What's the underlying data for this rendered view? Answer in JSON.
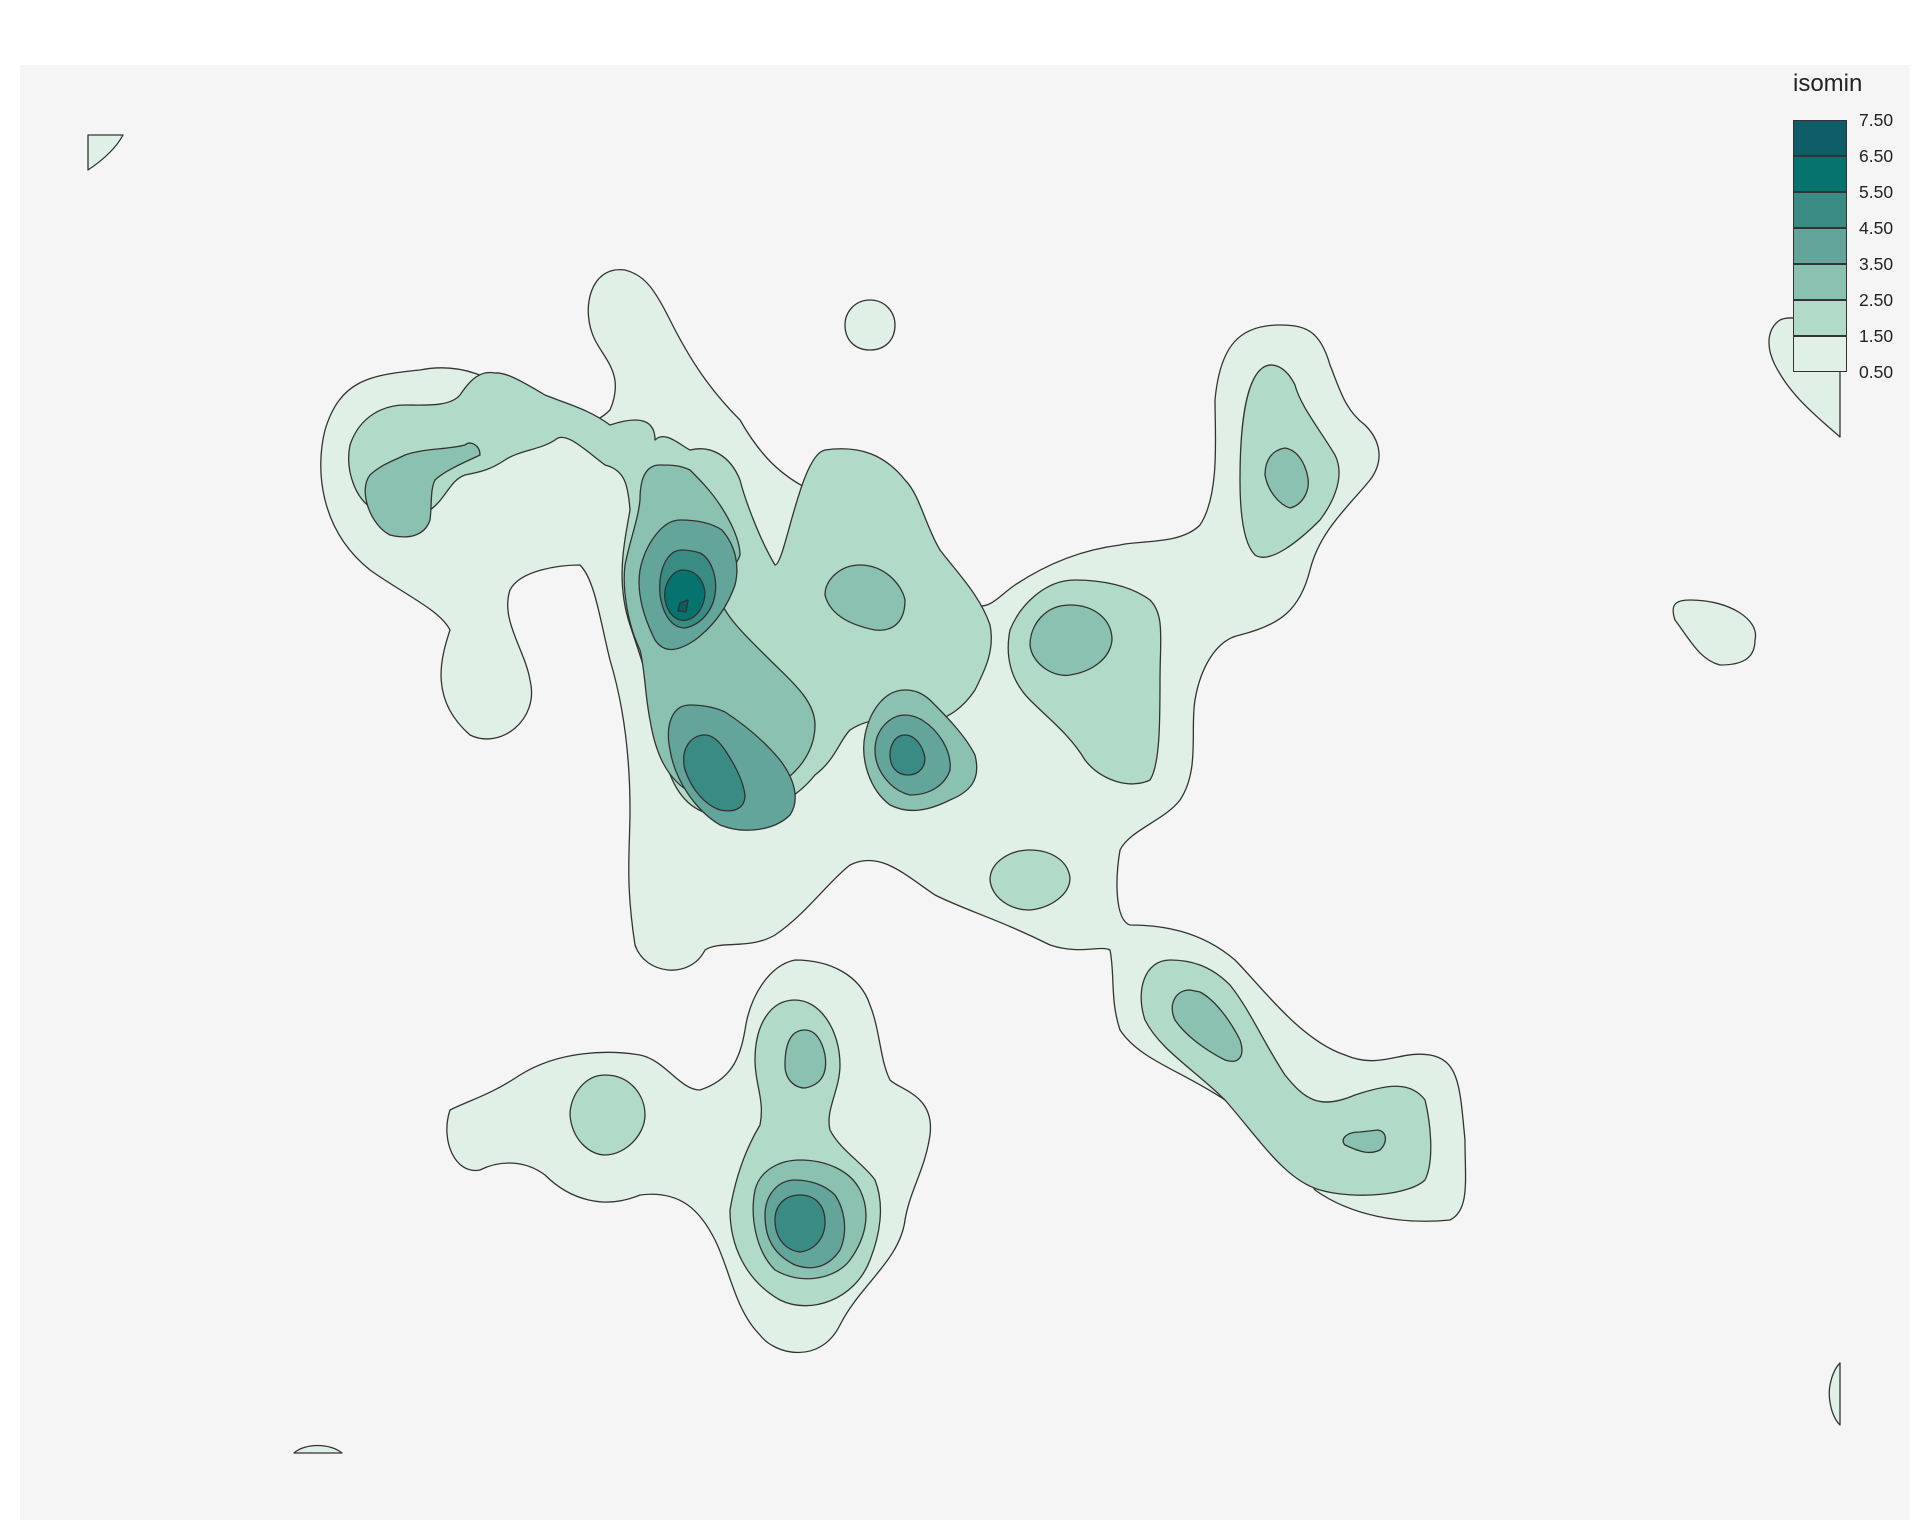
{
  "chart_data": {
    "type": "contour",
    "legend": {
      "title": "isomin",
      "position": "top-right",
      "levels": [
        {
          "label": "7.50",
          "color": "#0d5c68"
        },
        {
          "label": "6.50",
          "color": "#07736f"
        },
        {
          "label": "5.50",
          "color": "#3a8b84"
        },
        {
          "label": "4.50",
          "color": "#64a59b"
        },
        {
          "label": "3.50",
          "color": "#8bc1b0"
        },
        {
          "label": "2.50",
          "color": "#b1dbc8"
        },
        {
          "label": "1.50",
          "color": "#e1f0e7"
        },
        {
          "label": "0.50",
          "color": null
        }
      ]
    },
    "background": "#f5f5f5",
    "grid": false,
    "axes_visible": false
  }
}
